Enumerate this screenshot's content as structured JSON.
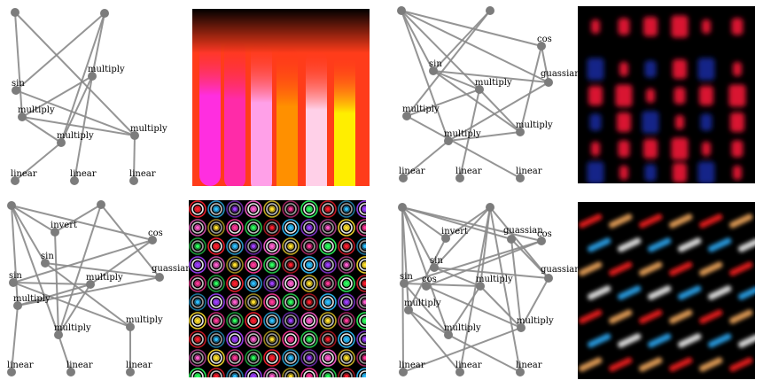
{
  "panels": [
    {
      "id": "p1",
      "nodes": [
        {
          "label": ""
        },
        {
          "label": ""
        },
        {
          "label": "sin"
        },
        {
          "label": "multiply"
        },
        {
          "label": "multiply"
        },
        {
          "label": "multiply"
        },
        {
          "label": "multiply"
        },
        {
          "label": "linear"
        },
        {
          "label": "linear"
        },
        {
          "label": "linear"
        }
      ],
      "edges": [
        [
          0,
          3
        ],
        [
          0,
          6
        ],
        [
          1,
          2
        ],
        [
          1,
          5
        ],
        [
          1,
          4
        ],
        [
          2,
          6
        ],
        [
          3,
          6
        ],
        [
          3,
          5
        ],
        [
          5,
          4
        ],
        [
          3,
          4
        ],
        [
          4,
          7
        ],
        [
          5,
          8
        ],
        [
          6,
          9
        ]
      ],
      "render_style": "pink-orange-yellow-stripes"
    },
    {
      "id": "p2",
      "nodes": [
        {
          "label": ""
        },
        {
          "label": ""
        },
        {
          "label": "cos"
        },
        {
          "label": "sin"
        },
        {
          "label": "guassian"
        },
        {
          "label": "multiply"
        },
        {
          "label": "multiply"
        },
        {
          "label": "multiply"
        },
        {
          "label": "multiply"
        },
        {
          "label": "linear"
        },
        {
          "label": "linear"
        },
        {
          "label": "linear"
        }
      ],
      "edges": [
        [
          0,
          2
        ],
        [
          0,
          3
        ],
        [
          0,
          4
        ],
        [
          0,
          5
        ],
        [
          0,
          6
        ],
        [
          1,
          3
        ],
        [
          1,
          8
        ],
        [
          2,
          4
        ],
        [
          2,
          7
        ],
        [
          3,
          4
        ],
        [
          3,
          5
        ],
        [
          5,
          8
        ],
        [
          5,
          7
        ],
        [
          4,
          6
        ],
        [
          6,
          7
        ],
        [
          6,
          9
        ],
        [
          5,
          10
        ],
        [
          8,
          11
        ],
        [
          3,
          7
        ]
      ],
      "render_style": "red-blue-grid"
    },
    {
      "id": "p3",
      "nodes": [
        {
          "label": ""
        },
        {
          "label": ""
        },
        {
          "label": "invert"
        },
        {
          "label": "cos"
        },
        {
          "label": "sin"
        },
        {
          "label": "guassian"
        },
        {
          "label": "sin"
        },
        {
          "label": "multiply"
        },
        {
          "label": "multiply"
        },
        {
          "label": "multiply"
        },
        {
          "label": "multiply"
        },
        {
          "label": "linear"
        },
        {
          "label": "linear"
        },
        {
          "label": "linear"
        }
      ],
      "edges": [
        [
          0,
          2
        ],
        [
          0,
          3
        ],
        [
          0,
          4
        ],
        [
          0,
          8
        ],
        [
          0,
          9
        ],
        [
          1,
          2
        ],
        [
          1,
          5
        ],
        [
          1,
          9
        ],
        [
          3,
          6
        ],
        [
          3,
          7
        ],
        [
          4,
          5
        ],
        [
          4,
          10
        ],
        [
          6,
          7
        ],
        [
          6,
          10
        ],
        [
          7,
          8
        ],
        [
          7,
          9
        ],
        [
          5,
          8
        ],
        [
          8,
          11
        ],
        [
          9,
          12
        ],
        [
          10,
          13
        ],
        [
          2,
          9
        ]
      ],
      "render_style": "concentric-circle-grid"
    },
    {
      "id": "p4",
      "nodes": [
        {
          "label": ""
        },
        {
          "label": ""
        },
        {
          "label": "invert"
        },
        {
          "label": "guassian"
        },
        {
          "label": "cos"
        },
        {
          "label": "sin"
        },
        {
          "label": "guassian"
        },
        {
          "label": "sin"
        },
        {
          "label": "cos"
        },
        {
          "label": "multiply"
        },
        {
          "label": "multiply"
        },
        {
          "label": "multiply"
        },
        {
          "label": "multiply"
        },
        {
          "label": "linear"
        },
        {
          "label": "linear"
        },
        {
          "label": "linear"
        }
      ],
      "edges": [
        [
          0,
          2
        ],
        [
          0,
          3
        ],
        [
          0,
          4
        ],
        [
          0,
          5
        ],
        [
          0,
          10
        ],
        [
          0,
          11
        ],
        [
          0,
          13
        ],
        [
          1,
          2
        ],
        [
          1,
          5
        ],
        [
          1,
          6
        ],
        [
          1,
          9
        ],
        [
          1,
          14
        ],
        [
          1,
          15
        ],
        [
          3,
          6
        ],
        [
          4,
          7
        ],
        [
          4,
          8
        ],
        [
          5,
          6
        ],
        [
          5,
          9
        ],
        [
          7,
          9
        ],
        [
          7,
          11
        ],
        [
          8,
          12
        ],
        [
          9,
          12
        ],
        [
          9,
          11
        ],
        [
          6,
          12
        ],
        [
          10,
          11
        ],
        [
          10,
          14
        ],
        [
          11,
          15
        ],
        [
          12,
          13
        ],
        [
          2,
          10
        ],
        [
          3,
          12
        ]
      ],
      "render_style": "diagonal-blue-red-streaks"
    }
  ],
  "colors": {
    "node": "#7c7c7c",
    "edge": "#8a8a8a",
    "label": "#000000"
  }
}
